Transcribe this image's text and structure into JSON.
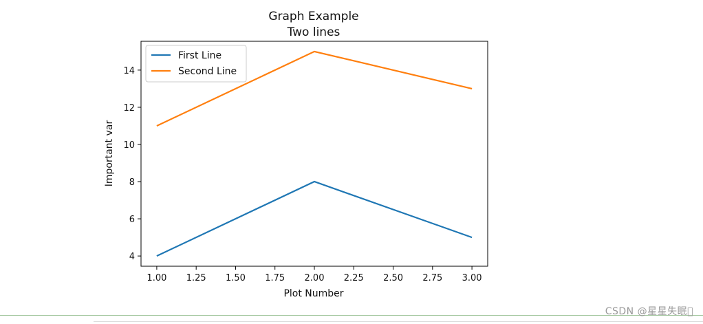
{
  "chart_data": {
    "type": "line",
    "title": "Graph Example",
    "subtitle": "Two lines",
    "xlabel": "Plot Number",
    "ylabel": "Important var",
    "x": [
      1,
      2,
      3
    ],
    "series": [
      {
        "name": "First Line",
        "values": [
          4,
          8,
          5
        ],
        "color": "#1f77b4"
      },
      {
        "name": "Second Line",
        "values": [
          11,
          15,
          13
        ],
        "color": "#ff7f0e"
      }
    ],
    "xlim": [
      0.9,
      3.1
    ],
    "ylim": [
      3.45,
      15.55
    ],
    "xticks": [
      "1.00",
      "1.25",
      "1.50",
      "1.75",
      "2.00",
      "2.25",
      "2.50",
      "2.75",
      "3.00"
    ],
    "yticks": [
      "4",
      "6",
      "8",
      "10",
      "12",
      "14"
    ],
    "grid": false,
    "legend_position": "upper-left"
  },
  "watermark": "CSDN @星星失眠\u0000"
}
